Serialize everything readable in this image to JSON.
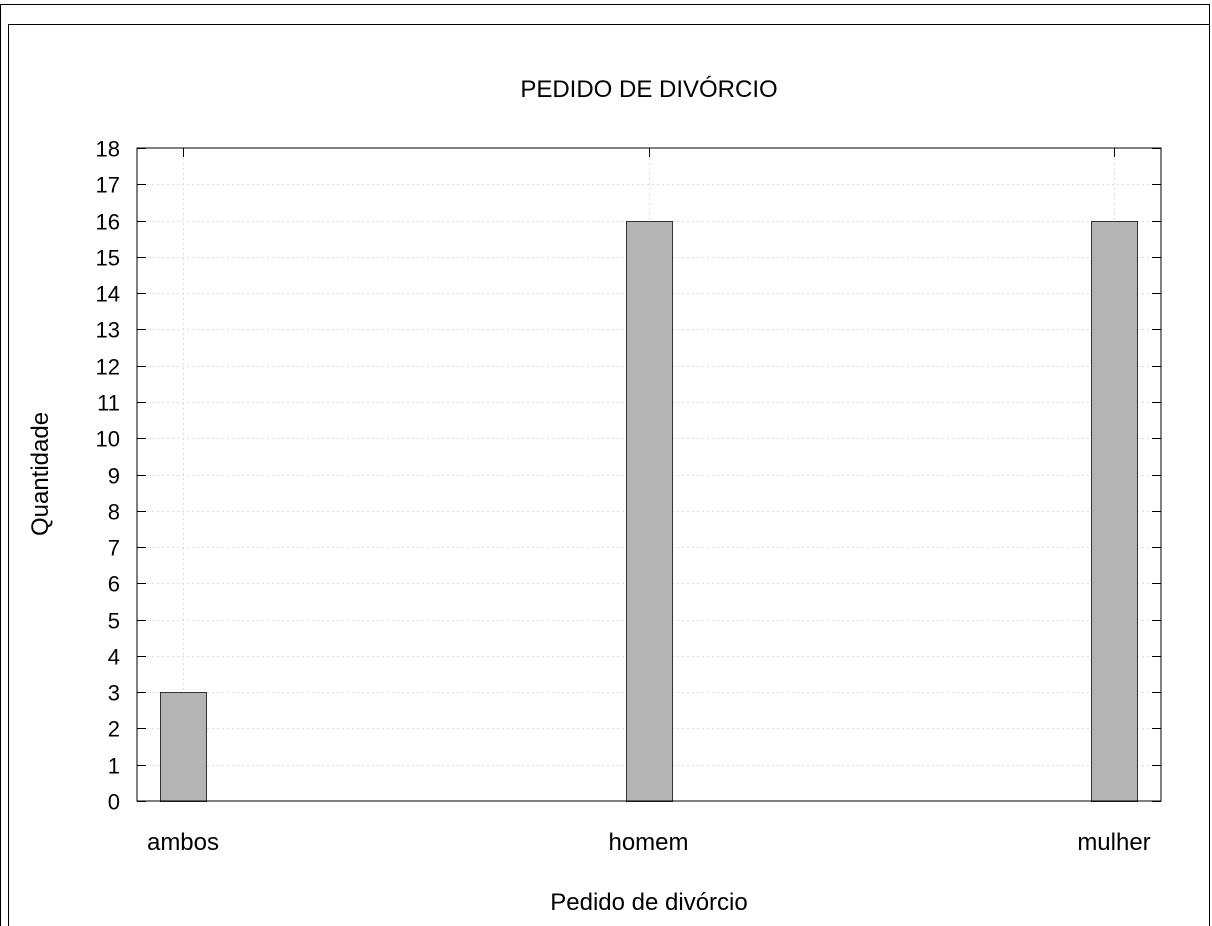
{
  "chart_data": {
    "type": "bar",
    "title": "PEDIDO DE DIVÓRCIO",
    "xlabel": "Pedido de divórcio",
    "ylabel": "Quantidade",
    "categories": [
      "ambos",
      "homem",
      "mulher"
    ],
    "values": [
      3,
      16,
      16
    ],
    "ylim": [
      0,
      18
    ],
    "yticks": [
      "0",
      "1",
      "2",
      "3",
      "4",
      "5",
      "6",
      "7",
      "8",
      "9",
      "10",
      "11",
      "12",
      "13",
      "14",
      "15",
      "16",
      "17",
      "18"
    ],
    "grid": true,
    "bar_color": "#b4b4b4",
    "legend": "none"
  }
}
